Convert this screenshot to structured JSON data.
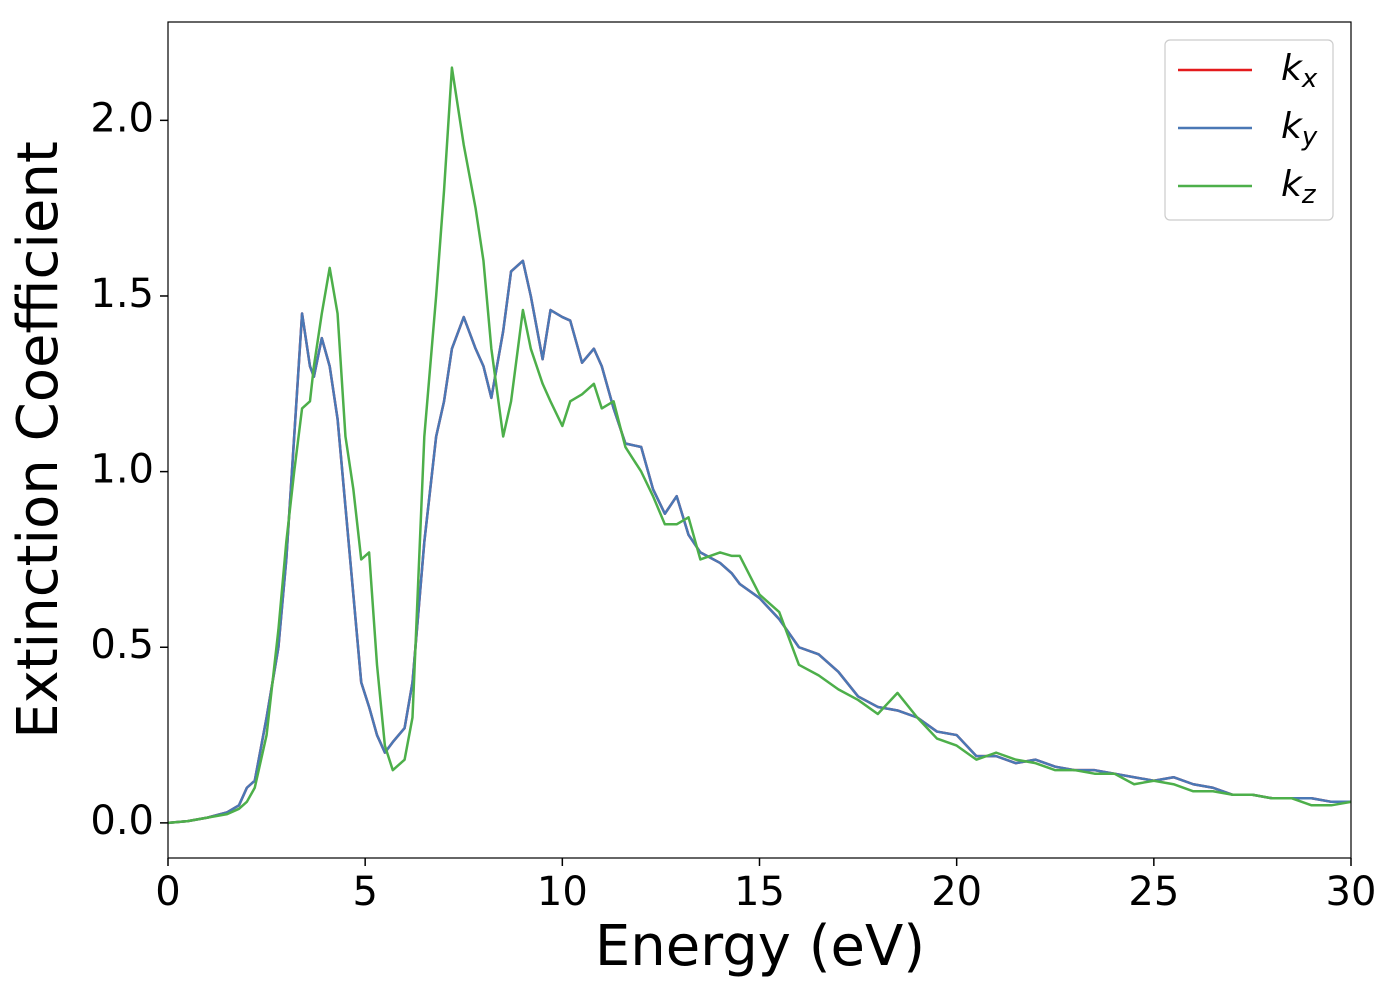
{
  "chart_data": {
    "type": "line",
    "xlabel": "Energy (eV)",
    "ylabel": "Extinction Coefficient",
    "x": [
      0,
      0.5,
      1,
      1.5,
      1.8,
      2,
      2.2,
      2.5,
      2.8,
      3,
      3.2,
      3.4,
      3.6,
      3.7,
      3.9,
      4.1,
      4.3,
      4.5,
      4.7,
      4.9,
      5.1,
      5.3,
      5.5,
      5.7,
      6,
      6.2,
      6.5,
      6.8,
      7,
      7.2,
      7.5,
      7.8,
      8,
      8.2,
      8.5,
      8.7,
      9,
      9.2,
      9.5,
      9.7,
      10,
      10.2,
      10.5,
      10.8,
      11,
      11.3,
      11.6,
      12,
      12.3,
      12.6,
      12.9,
      13.2,
      13.5,
      14,
      14.3,
      14.5,
      15,
      15.5,
      16,
      16.5,
      17,
      17.5,
      18,
      18.5,
      19,
      19.5,
      20,
      20.5,
      21,
      21.5,
      22,
      22.5,
      23,
      23.5,
      24,
      24.5,
      25,
      25.5,
      26,
      26.5,
      27,
      27.5,
      28,
      28.5,
      29,
      29.5,
      30
    ],
    "series": [
      {
        "name": "kx",
        "color": "#e41a1c",
        "values": [
          0,
          0.005,
          0.015,
          0.03,
          0.05,
          0.1,
          0.12,
          0.3,
          0.5,
          0.75,
          1.1,
          1.45,
          1.3,
          1.27,
          1.38,
          1.3,
          1.15,
          0.9,
          0.65,
          0.4,
          0.33,
          0.25,
          0.2,
          0.23,
          0.27,
          0.4,
          0.8,
          1.1,
          1.2,
          1.35,
          1.44,
          1.35,
          1.3,
          1.21,
          1.4,
          1.57,
          1.6,
          1.5,
          1.32,
          1.46,
          1.44,
          1.43,
          1.31,
          1.35,
          1.3,
          1.18,
          1.08,
          1.07,
          0.95,
          0.88,
          0.93,
          0.82,
          0.77,
          0.74,
          0.71,
          0.68,
          0.64,
          0.58,
          0.5,
          0.48,
          0.43,
          0.36,
          0.33,
          0.32,
          0.3,
          0.26,
          0.25,
          0.19,
          0.19,
          0.17,
          0.18,
          0.16,
          0.15,
          0.15,
          0.14,
          0.13,
          0.12,
          0.13,
          0.11,
          0.1,
          0.08,
          0.08,
          0.07,
          0.07,
          0.07,
          0.06,
          0.06
        ]
      },
      {
        "name": "ky",
        "color": "#4a78b5",
        "values": [
          0,
          0.005,
          0.015,
          0.03,
          0.05,
          0.1,
          0.12,
          0.3,
          0.5,
          0.75,
          1.1,
          1.45,
          1.3,
          1.27,
          1.38,
          1.3,
          1.15,
          0.9,
          0.65,
          0.4,
          0.33,
          0.25,
          0.2,
          0.23,
          0.27,
          0.4,
          0.8,
          1.1,
          1.2,
          1.35,
          1.44,
          1.35,
          1.3,
          1.21,
          1.4,
          1.57,
          1.6,
          1.5,
          1.32,
          1.46,
          1.44,
          1.43,
          1.31,
          1.35,
          1.3,
          1.18,
          1.08,
          1.07,
          0.95,
          0.88,
          0.93,
          0.82,
          0.77,
          0.74,
          0.71,
          0.68,
          0.64,
          0.58,
          0.5,
          0.48,
          0.43,
          0.36,
          0.33,
          0.32,
          0.3,
          0.26,
          0.25,
          0.19,
          0.19,
          0.17,
          0.18,
          0.16,
          0.15,
          0.15,
          0.14,
          0.13,
          0.12,
          0.13,
          0.11,
          0.1,
          0.08,
          0.08,
          0.07,
          0.07,
          0.07,
          0.06,
          0.06
        ]
      },
      {
        "name": "kz",
        "color": "#4daf4a",
        "values": [
          0,
          0.005,
          0.015,
          0.025,
          0.04,
          0.06,
          0.1,
          0.25,
          0.55,
          0.8,
          1.0,
          1.18,
          1.2,
          1.3,
          1.45,
          1.58,
          1.45,
          1.1,
          0.95,
          0.75,
          0.77,
          0.45,
          0.22,
          0.15,
          0.18,
          0.3,
          1.1,
          1.5,
          1.8,
          2.15,
          1.93,
          1.75,
          1.6,
          1.35,
          1.1,
          1.2,
          1.46,
          1.35,
          1.25,
          1.2,
          1.13,
          1.2,
          1.22,
          1.25,
          1.18,
          1.2,
          1.07,
          1.0,
          0.93,
          0.85,
          0.85,
          0.87,
          0.75,
          0.77,
          0.76,
          0.76,
          0.65,
          0.6,
          0.45,
          0.42,
          0.38,
          0.35,
          0.31,
          0.37,
          0.3,
          0.24,
          0.22,
          0.18,
          0.2,
          0.18,
          0.17,
          0.15,
          0.15,
          0.14,
          0.14,
          0.11,
          0.12,
          0.11,
          0.09,
          0.09,
          0.08,
          0.08,
          0.07,
          0.07,
          0.05,
          0.05,
          0.06
        ]
      }
    ],
    "xlim": [
      0,
      30
    ],
    "xticks": [
      0,
      5,
      10,
      15,
      20,
      25,
      30
    ],
    "ylim": [
      -0.1,
      2.28
    ],
    "yticks": [
      {
        "value": 0,
        "label": "0.0"
      },
      0.5,
      {
        "value": 1,
        "label": "1.0"
      },
      1.5,
      {
        "value": 2,
        "label": "2.0"
      }
    ],
    "legend": "upper right"
  }
}
